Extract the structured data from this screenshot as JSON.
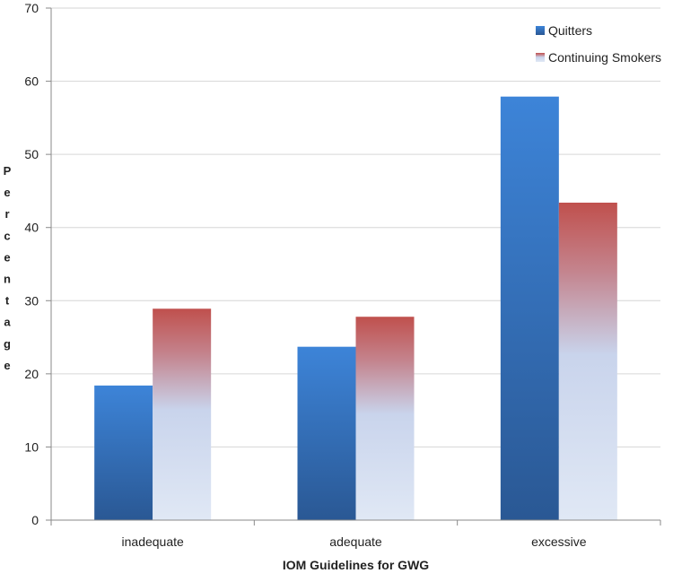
{
  "chart_data": {
    "type": "bar",
    "categories": [
      "inadequate",
      "adequate",
      "excessive"
    ],
    "series": [
      {
        "name": "Quitters",
        "values": [
          18.4,
          23.7,
          57.9
        ],
        "colors": [
          "#3d84d8",
          "#2a5894"
        ]
      },
      {
        "name": "Continuing Smokers",
        "values": [
          28.9,
          27.8,
          43.4
        ],
        "colors": [
          "#c0504d",
          "#c4858f",
          "#c9d4ec",
          "#e0e8f5"
        ]
      }
    ],
    "xlabel": "IOM Guidelines for GWG",
    "ylabel": "Percentage",
    "ylim": [
      0,
      70
    ],
    "yticks": [
      0,
      10,
      20,
      30,
      40,
      50,
      60,
      70
    ],
    "grid": true,
    "legend": "top-right",
    "grid_color": "#d6d6d6",
    "axis_color": "#8a8a8a"
  }
}
